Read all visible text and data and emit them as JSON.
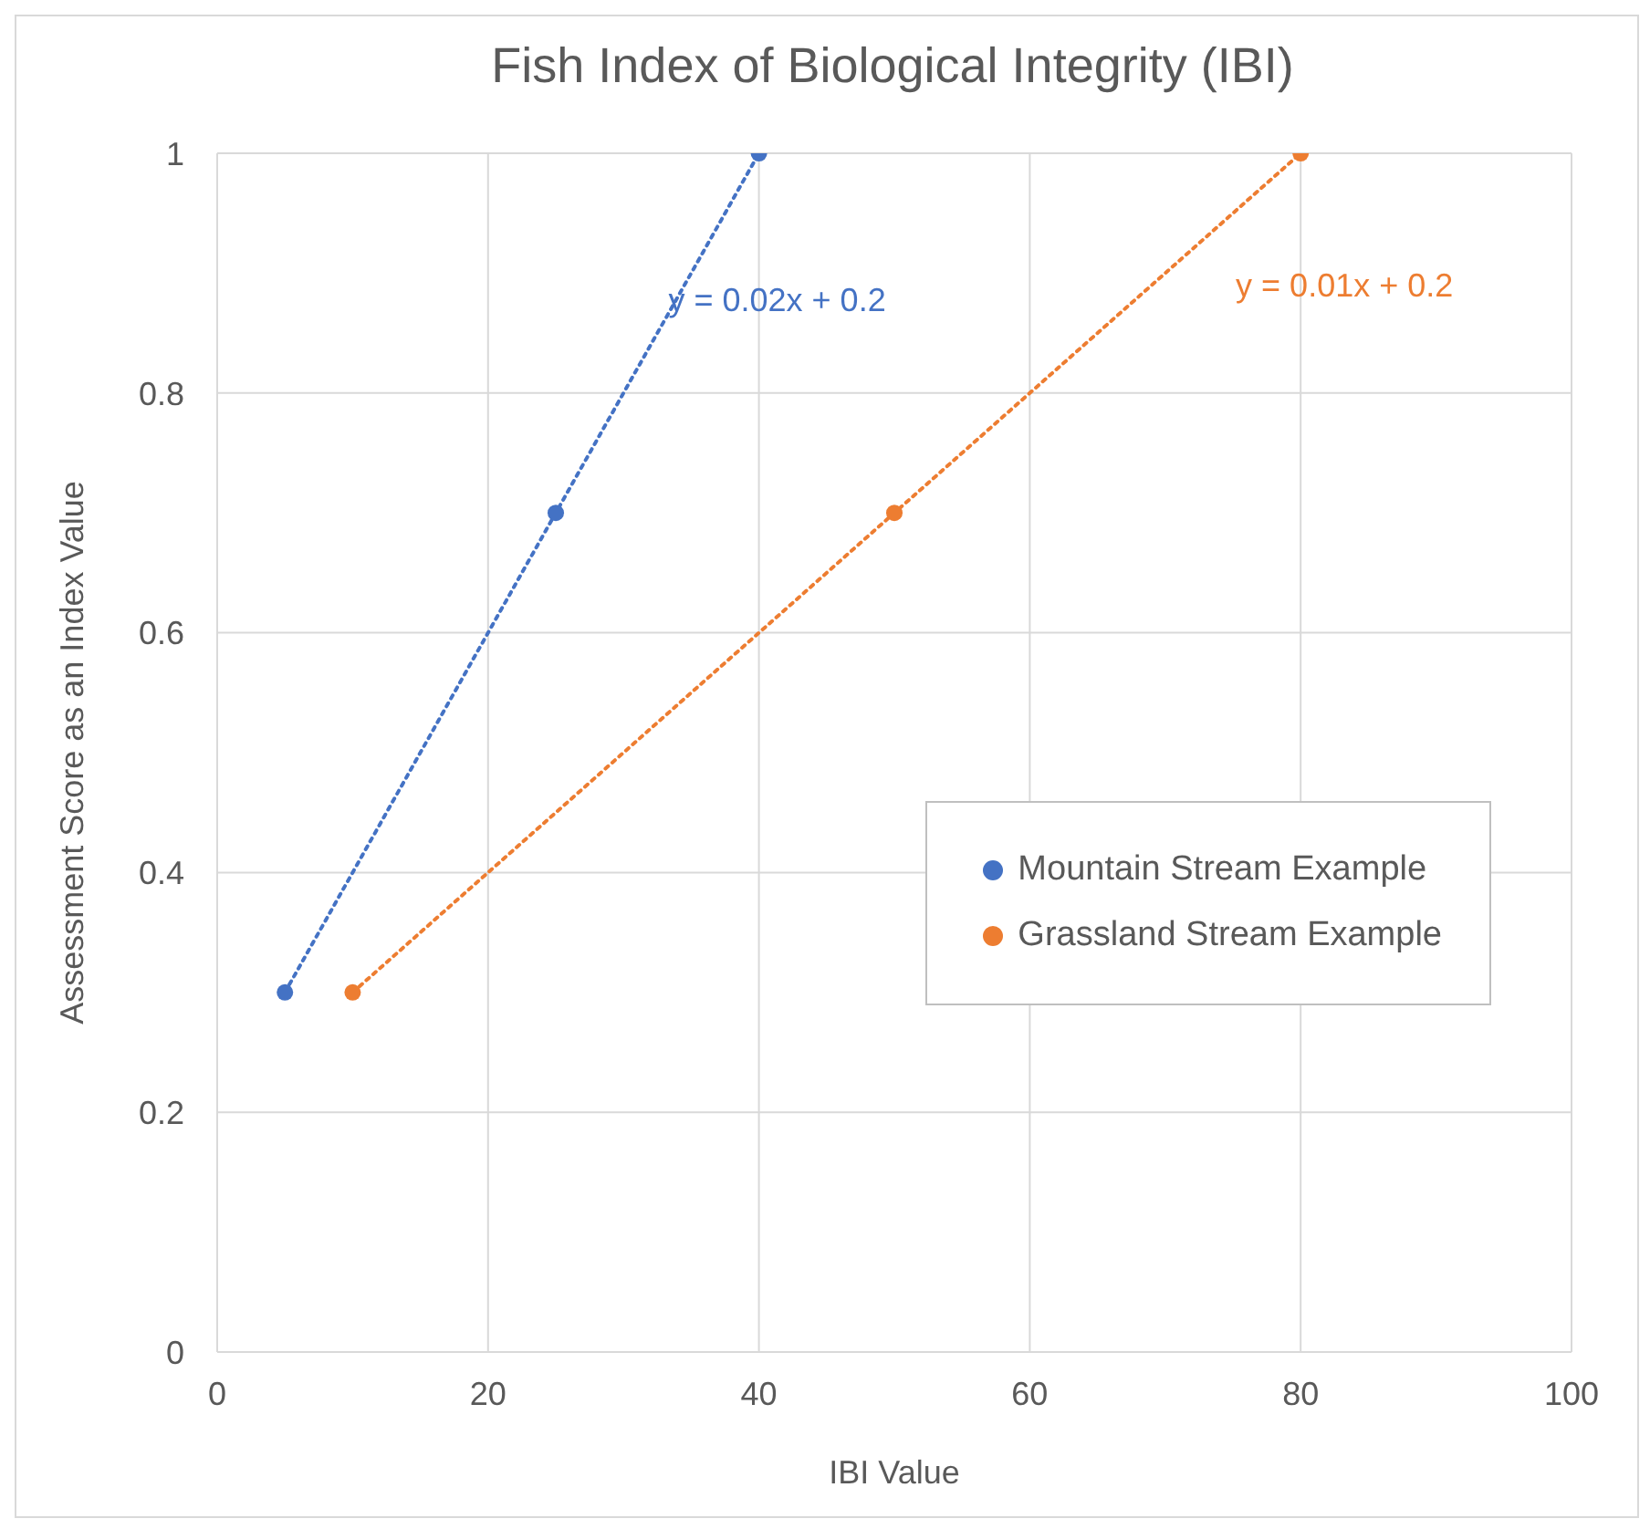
{
  "chart_data": {
    "type": "scatter",
    "title": "Fish Index of Biological Integrity (IBI)",
    "xlabel": "IBI Value",
    "ylabel": "Assessment Score as an Index Value",
    "series": [
      {
        "name": "Mountain Stream Example",
        "color": "#4472c4",
        "x": [
          5,
          25,
          40
        ],
        "values": [
          0.3,
          0.7,
          1
        ],
        "marker": "circle"
      },
      {
        "name": "Grassland Stream Example",
        "color": "#ed7d31",
        "x": [
          10,
          50,
          80
        ],
        "values": [
          0.3,
          0.7,
          1
        ],
        "marker": "circle"
      },
      {
        "type": "line",
        "color": "#4472c4",
        "x": [
          5,
          40
        ],
        "values": [
          0.3,
          1
        ],
        "line_style": "dotted",
        "marker": "none"
      },
      {
        "type": "line",
        "color": "#ed7d31",
        "x": [
          10,
          80
        ],
        "values": [
          0.3,
          1
        ],
        "line_style": "dotted",
        "marker": "none"
      }
    ],
    "annotations": [
      "y = 0.02x + 0.2",
      "y = 0.01x + 0.2"
    ],
    "xlim": [
      0,
      100
    ],
    "xticks": [
      0,
      20,
      40,
      60,
      80,
      100
    ],
    "ylim": [
      0,
      1
    ],
    "yticks": [
      0,
      0.2,
      0.4,
      0.6,
      0.8,
      1
    ],
    "grid": true,
    "legend": "right"
  }
}
